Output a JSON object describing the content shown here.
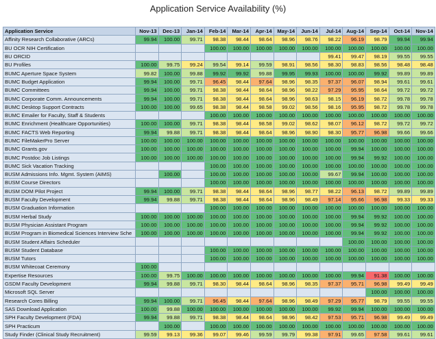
{
  "chart_data": {
    "type": "table",
    "title": "Application Service Availability (%)",
    "row_header": "Application Service",
    "columns": [
      "Nov-13",
      "Dec-13",
      "Jan-14",
      "Feb-14",
      "Mar-14",
      "Apr-14",
      "May-14",
      "Jun-14",
      "Jul-14",
      "Aug-14",
      "Sep-14",
      "Oct-14",
      "Nov-14"
    ],
    "rows": [
      {
        "name": "Affinity Research Collaborative (ARCs)",
        "values": [
          "99.94",
          "100.00",
          "99.71",
          "98.38",
          "98.44",
          "98.64",
          "98.96",
          "98.76",
          "98.22",
          "96.19",
          "98.79",
          "99.94",
          "99.94"
        ]
      },
      {
        "name": "BU OCR NIH Certification",
        "values": [
          "",
          "",
          "",
          "100.00",
          "100.00",
          "100.00",
          "100.00",
          "100.00",
          "100.00",
          "100.00",
          "100.00",
          "100.00",
          "100.00"
        ]
      },
      {
        "name": "BU ORCID",
        "values": [
          "",
          "",
          "",
          "",
          "",
          "",
          "",
          "",
          "99.41",
          "99.47",
          "98.19",
          "99.55",
          "99.55"
        ]
      },
      {
        "name": "BU Profiles",
        "values": [
          "100.00",
          "99.75",
          "99.24",
          "99.54",
          "99.14",
          "99.59",
          "98.91",
          "98.56",
          "98.30",
          "98.83",
          "98.56",
          "98.48",
          "98.48"
        ]
      },
      {
        "name": "BUMC Aperture Space System",
        "values": [
          "99.82",
          "100.00",
          "99.88",
          "99.92",
          "99.92",
          "99.88",
          "99.95",
          "99.93",
          "100.00",
          "100.00",
          "99.92",
          "99.89",
          "99.89"
        ]
      },
      {
        "name": "BUMC Budget Application",
        "values": [
          "99.94",
          "100.00",
          "99.71",
          "96.45",
          "98.44",
          "97.64",
          "98.96",
          "98.35",
          "97.37",
          "96.07",
          "98.94",
          "99.61",
          "99.61"
        ]
      },
      {
        "name": "BUMC Committees",
        "values": [
          "99.94",
          "100.00",
          "99.71",
          "98.38",
          "98.44",
          "98.64",
          "98.96",
          "98.22",
          "97.29",
          "95.95",
          "98.64",
          "99.72",
          "99.72"
        ]
      },
      {
        "name": "BUMC Corporate Comm. Announcements",
        "values": [
          "99.94",
          "100.00",
          "99.71",
          "98.38",
          "98.44",
          "98.64",
          "98.96",
          "98.63",
          "98.15",
          "96.19",
          "98.72",
          "99.78",
          "99.78"
        ]
      },
      {
        "name": "BUMC Desktop Support Contracts",
        "values": [
          "100.00",
          "100.00",
          "99.65",
          "98.38",
          "98.44",
          "98.58",
          "99.02",
          "98.56",
          "98.16",
          "95.95",
          "98.72",
          "99.78",
          "99.78"
        ]
      },
      {
        "name": "BUMC Emailer for Faculty, Staff & Students",
        "values": [
          "",
          "",
          "",
          "100.00",
          "100.00",
          "100.00",
          "100.00",
          "100.00",
          "100.00",
          "100.00",
          "100.00",
          "100.00",
          "100.00"
        ]
      },
      {
        "name": "BUMC Enrichment (Healthcare Opportunities)",
        "values": [
          "100.00",
          "100.00",
          "99.71",
          "98.38",
          "98.44",
          "98.58",
          "99.02",
          "98.62",
          "98.07",
          "96.12",
          "98.72",
          "99.72",
          "99.72"
        ]
      },
      {
        "name": "BUMC FACTS Web Reporting",
        "values": [
          "99.94",
          "99.88",
          "99.71",
          "98.38",
          "98.44",
          "98.64",
          "98.96",
          "98.90",
          "98.30",
          "95.77",
          "96.98",
          "99.66",
          "99.66"
        ]
      },
      {
        "name": "BUMC FileMakerPro Server",
        "values": [
          "100.00",
          "100.00",
          "100.00",
          "100.00",
          "100.00",
          "100.00",
          "100.00",
          "100.00",
          "100.00",
          "100.00",
          "100.00",
          "100.00",
          "100.00"
        ]
      },
      {
        "name": "BUMC Grants.gov",
        "values": [
          "100.00",
          "100.00",
          "100.00",
          "100.00",
          "100.00",
          "100.00",
          "100.00",
          "100.00",
          "100.00",
          "99.94",
          "100.00",
          "100.00",
          "100.00"
        ]
      },
      {
        "name": "BUMC Postdoc Job Listings",
        "values": [
          "100.00",
          "100.00",
          "100.00",
          "100.00",
          "100.00",
          "100.00",
          "100.00",
          "100.00",
          "100.00",
          "99.94",
          "99.92",
          "100.00",
          "100.00"
        ]
      },
      {
        "name": "BUMC Sick Vacation Tracking",
        "values": [
          "",
          "",
          "",
          "100.00",
          "100.00",
          "100.00",
          "100.00",
          "100.00",
          "100.00",
          "100.00",
          "100.00",
          "100.00",
          "100.00"
        ]
      },
      {
        "name": "BUSM Admissions Info. Mgmt. System (AIMS)",
        "values": [
          "",
          "100.00",
          "",
          "100.00",
          "100.00",
          "100.00",
          "100.00",
          "100.00",
          "99.67",
          "99.94",
          "100.00",
          "100.00",
          "100.00"
        ]
      },
      {
        "name": "BUSM Course Directors",
        "values": [
          "",
          "",
          "",
          "100.00",
          "100.00",
          "100.00",
          "100.00",
          "100.00",
          "100.00",
          "100.00",
          "100.00",
          "100.00",
          "100.00"
        ]
      },
      {
        "name": "BUSM DOM Pilot Project",
        "values": [
          "99.94",
          "100.00",
          "99.71",
          "98.38",
          "98.44",
          "98.64",
          "98.96",
          "98.77",
          "98.22",
          "96.13",
          "98.72",
          "99.89",
          "99.89"
        ]
      },
      {
        "name": "BUSM Faculty Development",
        "values": [
          "99.94",
          "99.88",
          "99.71",
          "98.38",
          "98.44",
          "98.64",
          "98.96",
          "98.49",
          "97.14",
          "95.66",
          "96.98",
          "99.33",
          "99.33"
        ]
      },
      {
        "name": "BUSM Graduation Information",
        "values": [
          "",
          "",
          "",
          "100.00",
          "100.00",
          "100.00",
          "100.00",
          "100.00",
          "100.00",
          "100.00",
          "100.00",
          "100.00",
          "100.00"
        ]
      },
      {
        "name": "BUSM Herbal Study",
        "values": [
          "100.00",
          "100.00",
          "100.00",
          "100.00",
          "100.00",
          "100.00",
          "100.00",
          "100.00",
          "100.00",
          "99.94",
          "99.92",
          "100.00",
          "100.00"
        ]
      },
      {
        "name": "BUSM Physician Assistant Program",
        "values": [
          "100.00",
          "100.00",
          "100.00",
          "100.00",
          "100.00",
          "100.00",
          "100.00",
          "100.00",
          "100.00",
          "99.94",
          "99.92",
          "100.00",
          "100.00"
        ]
      },
      {
        "name": "BUSM Program in Biomedical Sciences Interview Sche",
        "values": [
          "100.00",
          "100.00",
          "100.00",
          "100.00",
          "100.00",
          "100.00",
          "100.00",
          "100.00",
          "100.00",
          "99.94",
          "99.92",
          "100.00",
          "100.00"
        ]
      },
      {
        "name": "BUSM Student Affairs Scheduler",
        "values": [
          "",
          "",
          "",
          "",
          "",
          "",
          "",
          "",
          "",
          "100.00",
          "100.00",
          "100.00",
          "100.00"
        ]
      },
      {
        "name": "BUSM Student Database",
        "values": [
          "",
          "",
          "",
          "100.00",
          "100.00",
          "100.00",
          "100.00",
          "100.00",
          "100.00",
          "100.00",
          "100.00",
          "100.00",
          "100.00"
        ]
      },
      {
        "name": "BUSM Tutors",
        "values": [
          "",
          "",
          "",
          "100.00",
          "100.00",
          "100.00",
          "100.00",
          "100.00",
          "100.00",
          "100.00",
          "100.00",
          "100.00",
          "100.00"
        ]
      },
      {
        "name": "BUSM Whitecoat Ceremony",
        "values": [
          "100.00",
          "",
          "",
          "",
          "",
          "",
          "",
          "",
          "",
          "",
          "",
          "",
          ""
        ]
      },
      {
        "name": "Expertise Resources",
        "values": [
          "100.00",
          "99.75",
          "100.00",
          "100.00",
          "100.00",
          "100.00",
          "100.00",
          "100.00",
          "100.00",
          "99.94",
          "91.38",
          "100.00",
          "100.00"
        ]
      },
      {
        "name": "GSDM Faculty Development",
        "values": [
          "99.94",
          "99.88",
          "99.71",
          "98.30",
          "98.44",
          "98.64",
          "98.96",
          "98.35",
          "97.37",
          "95.71",
          "96.98",
          "99.49",
          "99.49"
        ]
      },
      {
        "name": "Microsoft SQL Server",
        "values": [
          "",
          "",
          "",
          "",
          "",
          "",
          "",
          "",
          "",
          "",
          "100.00",
          "100.00",
          "100.00"
        ]
      },
      {
        "name": "Research Cores Billing",
        "values": [
          "99.94",
          "100.00",
          "99.71",
          "96.45",
          "98.44",
          "97.64",
          "98.96",
          "98.49",
          "97.29",
          "95.77",
          "98.79",
          "99.55",
          "99.55"
        ]
      },
      {
        "name": "SAS Download Application",
        "values": [
          "100.00",
          "99.88",
          "100.00",
          "100.00",
          "100.00",
          "100.00",
          "100.00",
          "100.00",
          "99.92",
          "99.94",
          "100.00",
          "100.00",
          "100.00"
        ]
      },
      {
        "name": "SPH Faculty Development (FDA)",
        "values": [
          "99.94",
          "99.88",
          "99.71",
          "98.38",
          "98.44",
          "98.64",
          "98.96",
          "98.42",
          "97.53",
          "95.71",
          "96.98",
          "99.49",
          "99.49"
        ]
      },
      {
        "name": "SPH Practicum",
        "values": [
          "",
          "100.00",
          "",
          "100.00",
          "100.00",
          "100.00",
          "100.00",
          "100.00",
          "100.00",
          "100.00",
          "100.00",
          "100.00",
          "100.00"
        ]
      },
      {
        "name": "Study Finder (Clinical Study Recruitment)",
        "values": [
          "99.59",
          "99.13",
          "99.36",
          "99.07",
          "99.46",
          "99.59",
          "99.79",
          "99.38",
          "97.91",
          "99.65",
          "97.58",
          "99.61",
          "99.61"
        ]
      }
    ]
  },
  "colors": {
    "green": "#63be7b",
    "light_green": "#c8e6a0",
    "yellow": "#ffeb84",
    "orange": "#fbb16f",
    "red": "#f8696b",
    "empty": "#dbe5f1"
  }
}
